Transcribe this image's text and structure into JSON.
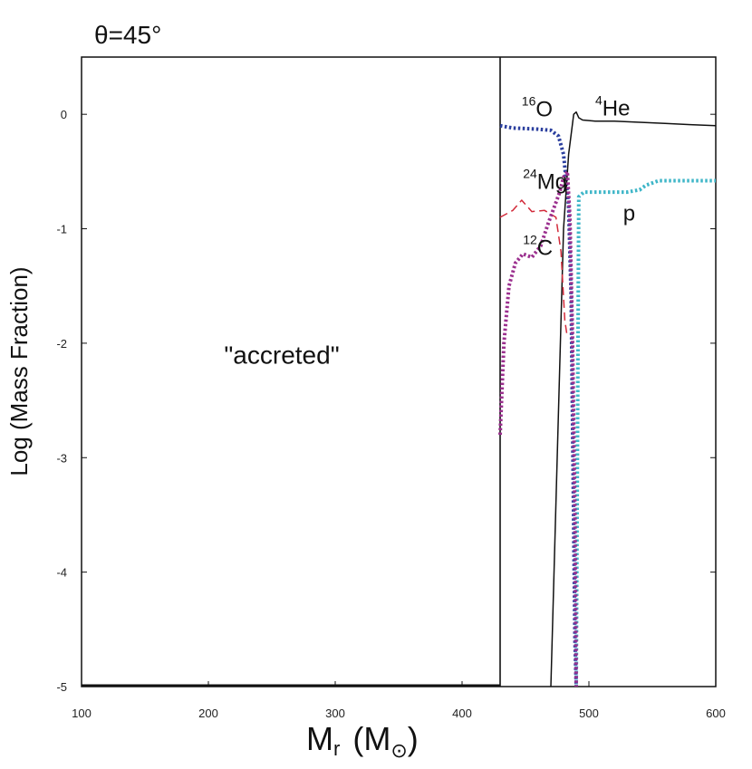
{
  "chart_data": {
    "type": "line",
    "title": "θ=45°",
    "xlabel": "Mr (M⊙)",
    "xlabel_main": "M",
    "xlabel_sub": "r",
    "xlabel_unit_open": "(M",
    "xlabel_unit_sym": "⊙",
    "xlabel_unit_close": ")",
    "ylabel": "Log (Mass Fraction)",
    "xlim": [
      100,
      600
    ],
    "ylim": [
      -5,
      0.5
    ],
    "xticks": [
      100,
      200,
      300,
      400,
      500,
      600
    ],
    "yticks": [
      0,
      -1,
      -2,
      -3,
      -4,
      -5
    ],
    "grid": false,
    "region": {
      "label": "\"accreted\"",
      "x_from": 100,
      "x_to": 430
    },
    "series": [
      {
        "name": "16O",
        "sup": "16",
        "el": "O",
        "color": "#2b3f9e",
        "style": "dotted",
        "x": [
          430,
          440,
          460,
          470,
          476,
          480,
          484,
          486,
          487,
          488,
          489,
          490
        ],
        "y": [
          -0.1,
          -0.12,
          -0.13,
          -0.14,
          -0.19,
          -0.35,
          -0.8,
          -1.6,
          -2.6,
          -3.6,
          -4.6,
          -5.0
        ]
      },
      {
        "name": "4He",
        "sup": "4",
        "el": "He",
        "color": "#111111",
        "style": "solid",
        "x": [
          470,
          475,
          480,
          484,
          488,
          490,
          492,
          495,
          505,
          520,
          540,
          560,
          580,
          600
        ],
        "y": [
          -5.0,
          -3.0,
          -1.0,
          -0.35,
          0.0,
          0.02,
          -0.03,
          -0.05,
          -0.06,
          -0.06,
          -0.07,
          -0.08,
          -0.09,
          -0.1
        ]
      },
      {
        "name": "24Mg",
        "sup": "24",
        "el": "Mg",
        "color": "#d22a3a",
        "style": "dashed",
        "x": [
          430,
          440,
          447,
          455,
          465,
          474,
          478,
          481,
          483
        ],
        "y": [
          -0.9,
          -0.84,
          -0.75,
          -0.85,
          -0.84,
          -0.9,
          -1.2,
          -1.8,
          -1.95
        ]
      },
      {
        "name": "p",
        "sup": "",
        "el": "p",
        "color": "#3fb6c8",
        "style": "dotted",
        "x": [
          490,
          492,
          496,
          505,
          520,
          530,
          540,
          545,
          555,
          570,
          585,
          600
        ],
        "y": [
          -5.0,
          -0.72,
          -0.68,
          -0.68,
          -0.68,
          -0.68,
          -0.66,
          -0.62,
          -0.58,
          -0.58,
          -0.58,
          -0.58
        ]
      },
      {
        "name": "12C",
        "sup": "12",
        "el": "C",
        "color": "#9b2f8e",
        "style": "dotted",
        "x": [
          430,
          433,
          437,
          442,
          448,
          455,
          462,
          468,
          473,
          477,
          480,
          483,
          485,
          487,
          489,
          490
        ],
        "y": [
          -2.8,
          -2.0,
          -1.5,
          -1.3,
          -1.22,
          -1.25,
          -1.15,
          -0.95,
          -0.8,
          -0.68,
          -0.55,
          -0.5,
          -0.9,
          -1.9,
          -3.5,
          -5.0
        ]
      }
    ],
    "annotations": [
      {
        "series": 0,
        "x": 447,
        "y": -0.02
      },
      {
        "series": 1,
        "x": 505,
        "y": -0.01
      },
      {
        "series": 2,
        "x": 448,
        "y": -0.65
      },
      {
        "series": 3,
        "x": 527,
        "y": -0.93
      },
      {
        "series": 4,
        "x": 448,
        "y": -1.23
      }
    ]
  }
}
